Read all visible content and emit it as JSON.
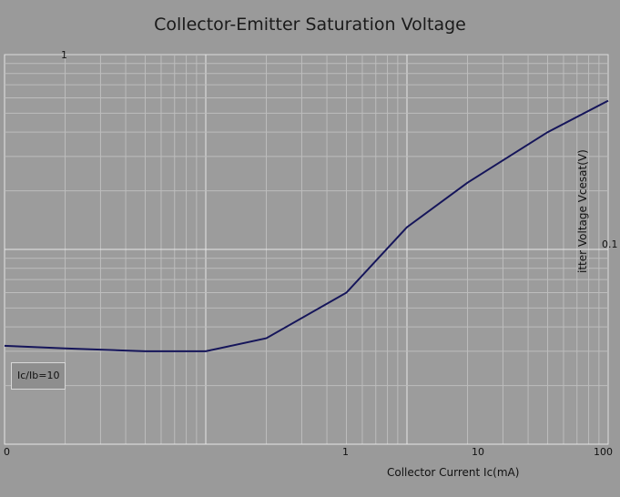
{
  "chart_data": {
    "type": "line",
    "title": "Collector-Emitter Saturation Voltage",
    "xlabel": "Collector Current   Ic(mA)",
    "ylabel": "itter Voltage   Vcesat(V)",
    "xscale": "log",
    "yscale": "log",
    "xlim": [
      0.1,
      100
    ],
    "ylim": [
      0.01,
      1
    ],
    "x_ticks": [
      "0",
      "1",
      "10",
      "100"
    ],
    "y_ticks": [
      "1",
      "0.1"
    ],
    "legend": [
      "Ic/Ib=10"
    ],
    "grid": true,
    "series": [
      {
        "name": "Ic/Ib=10",
        "x": [
          0.1,
          0.2,
          0.5,
          1,
          2,
          5,
          10,
          20,
          50,
          100
        ],
        "y": [
          0.032,
          0.031,
          0.03,
          0.03,
          0.035,
          0.06,
          0.13,
          0.22,
          0.4,
          0.58
        ]
      }
    ]
  }
}
